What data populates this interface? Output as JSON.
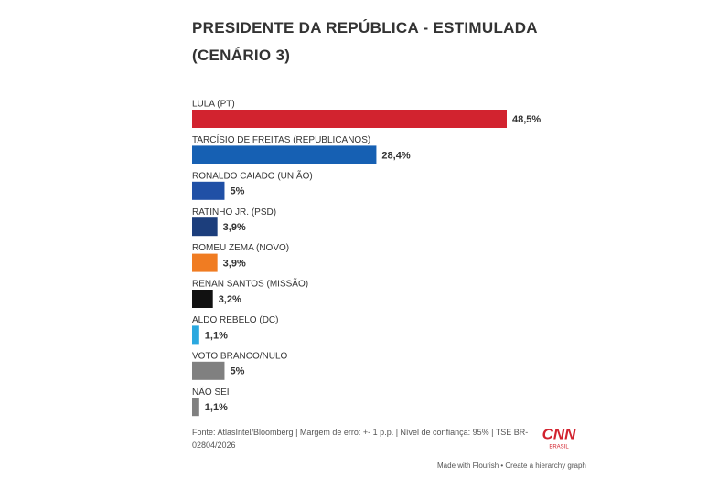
{
  "chart_data": {
    "type": "bar",
    "orientation": "horizontal",
    "title": "PRESIDENTE DA REPÚBLICA - ESTIMULADA (CENÁRIO 3)",
    "categories": [
      "LULA (PT)",
      "TARCÍSIO DE FREITAS (REPUBLICANOS)",
      "RONALDO CAIADO (UNIÃO)",
      "RATINHO JR. (PSD)",
      "ROMEU ZEMA (NOVO)",
      "RENAN SANTOS (MISSÃO)",
      "ALDO REBELO (DC)",
      "VOTO BRANCO/NULO",
      "NÃO SEI"
    ],
    "values": [
      48.5,
      28.4,
      5,
      3.9,
      3.9,
      3.2,
      1.1,
      5,
      1.1
    ],
    "value_labels": [
      "48,5%",
      "28,4%",
      "5%",
      "3,9%",
      "3,9%",
      "3,2%",
      "1,1%",
      "5%",
      "1,1%"
    ],
    "colors": [
      "#d2232f",
      "#1660b3",
      "#2050a6",
      "#1c3e7c",
      "#f07c22",
      "#111111",
      "#2aa8df",
      "#808080",
      "#808080"
    ],
    "source": "Fonte: AtlasIntel/Bloomberg | Margem de erro: +- 1 p.p. | Nível de confiança: 95% | TSE BR-02804/2026",
    "logo": {
      "name": "CNN",
      "sub": "BRASIL"
    },
    "credit": "Made with Flourish • Create a hierarchy graph"
  }
}
